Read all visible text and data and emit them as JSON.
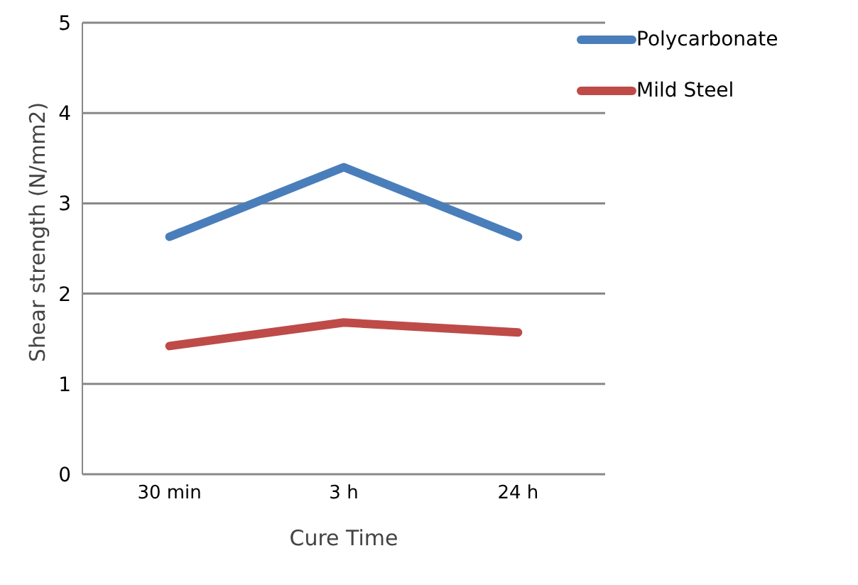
{
  "chart_data": {
    "type": "line",
    "xlabel": "Cure Time",
    "ylabel": "Shear strength (N/mm2)",
    "categories": [
      "30 min",
      "3 h",
      "24 h"
    ],
    "series": [
      {
        "name": "Polycarbonate",
        "color": "#4a7ebb",
        "values": [
          2.63,
          3.4,
          2.63
        ]
      },
      {
        "name": "Mild Steel",
        "color": "#be4b48",
        "values": [
          1.42,
          1.68,
          1.57
        ]
      }
    ],
    "ylim": [
      0,
      5
    ],
    "yticks": [
      0,
      1,
      2,
      3,
      4,
      5
    ],
    "grid": "y",
    "legend": "top right",
    "marker": "none",
    "line_style": "solid"
  }
}
